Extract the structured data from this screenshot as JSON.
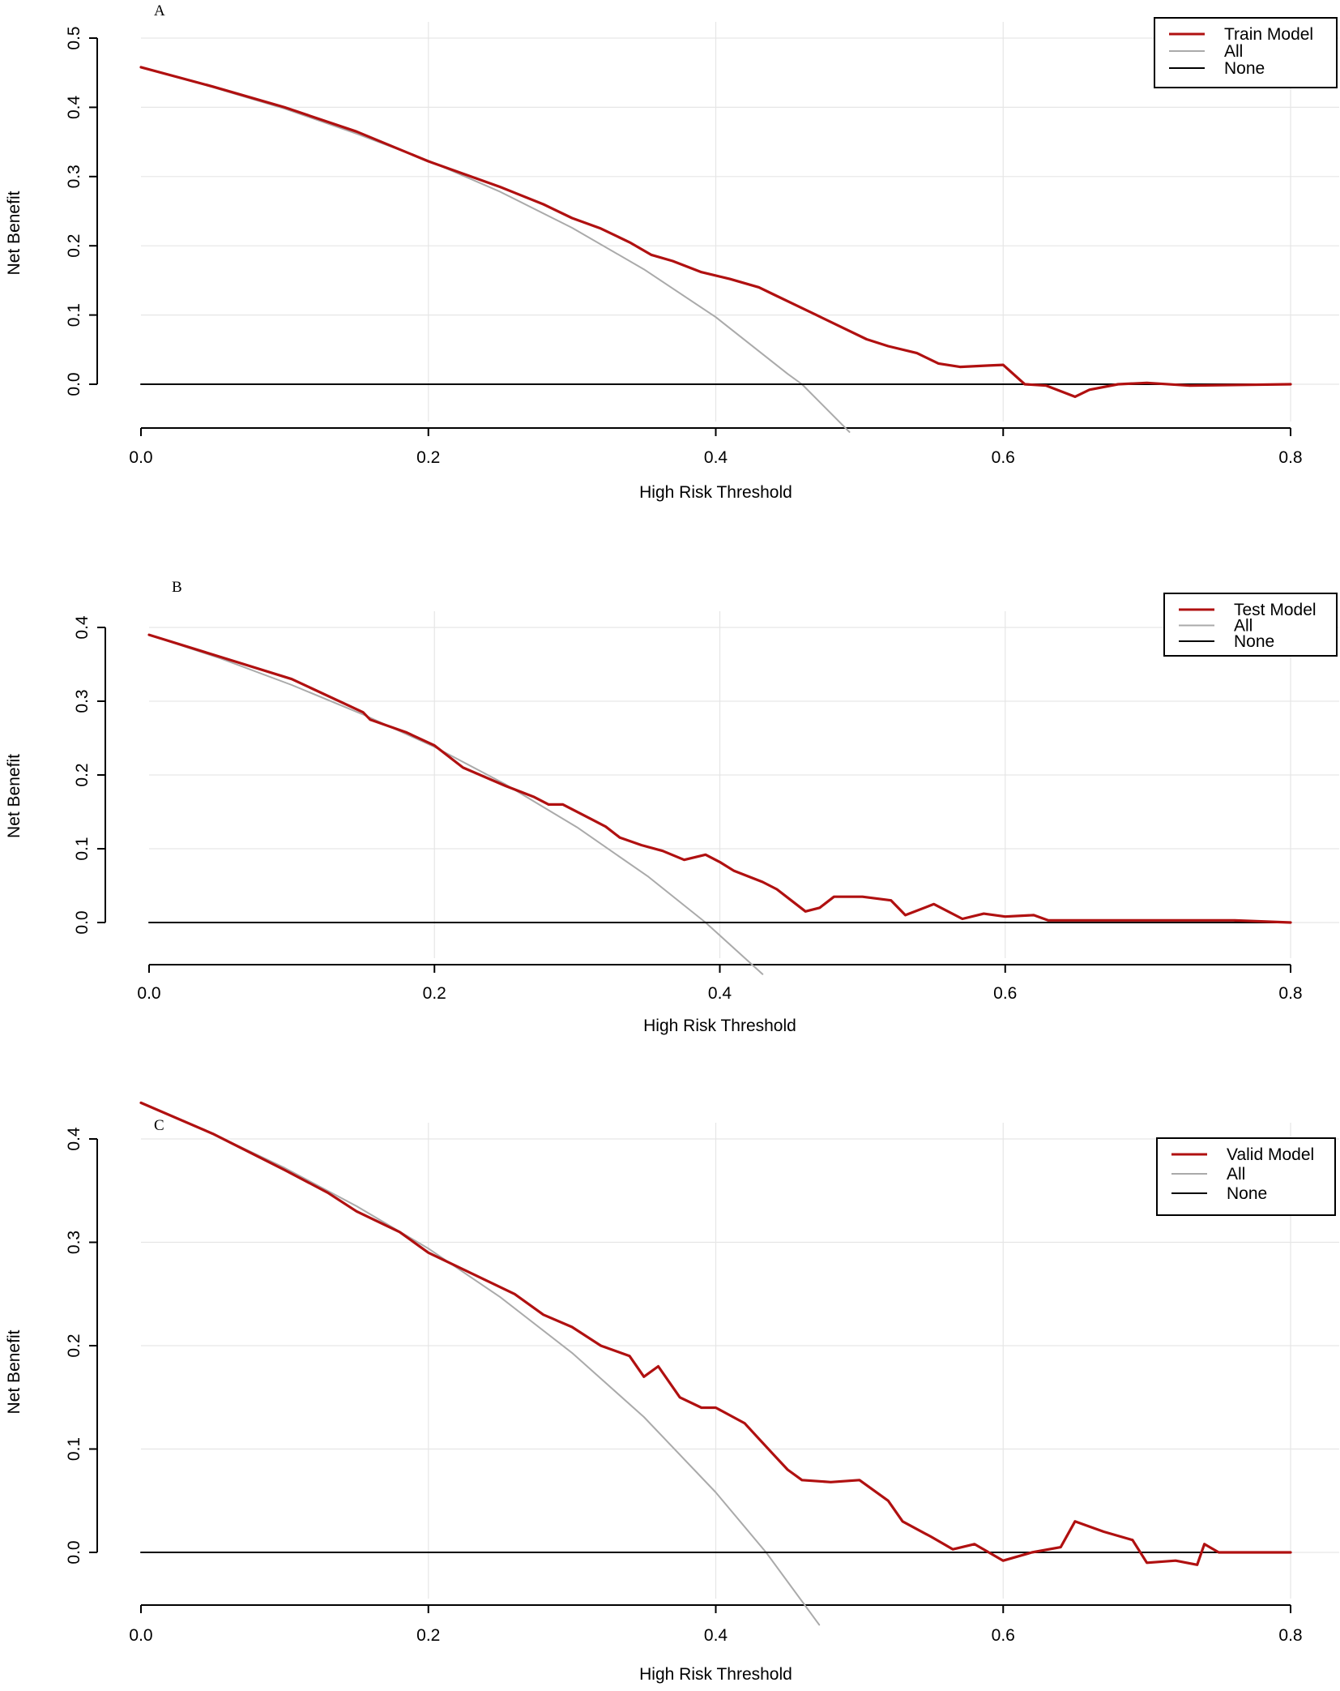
{
  "chart_data": [
    {
      "type": "line",
      "panel_label": "A",
      "xlabel": "High Risk Threshold",
      "ylabel": "Net Benefit",
      "xlim": [
        0,
        0.8
      ],
      "ylim": [
        -0.07,
        0.5
      ],
      "x_ticks": [
        0,
        0.2,
        0.4,
        0.6,
        0.8
      ],
      "x_tick_labels": [
        "0.0",
        "0.2",
        "0.4",
        "0.6",
        "0.8"
      ],
      "y_ticks": [
        0,
        0.1,
        0.2,
        0.3,
        0.4,
        0.5
      ],
      "y_tick_labels": [
        "0.0",
        "0.1",
        "0.2",
        "0.3",
        "0.4",
        "0.5"
      ],
      "grid": true,
      "legend_position": "top-right",
      "series": [
        {
          "name": "Train Model",
          "color": "#b01010",
          "x": [
            0.0,
            0.05,
            0.1,
            0.15,
            0.2,
            0.25,
            0.28,
            0.3,
            0.32,
            0.34,
            0.355,
            0.37,
            0.39,
            0.41,
            0.43,
            0.44,
            0.455,
            0.47,
            0.49,
            0.505,
            0.52,
            0.54,
            0.555,
            0.57,
            0.59,
            0.6,
            0.615,
            0.63,
            0.65,
            0.66,
            0.68,
            0.7,
            0.73,
            0.8
          ],
          "y": [
            0.458,
            0.43,
            0.4,
            0.365,
            0.322,
            0.285,
            0.26,
            0.24,
            0.225,
            0.205,
            0.187,
            0.178,
            0.162,
            0.152,
            0.14,
            0.13,
            0.115,
            0.1,
            0.08,
            0.065,
            0.055,
            0.045,
            0.03,
            0.025,
            0.027,
            0.028,
            0.0,
            -0.002,
            -0.018,
            -0.008,
            0.0,
            0.002,
            -0.002,
            0.0
          ]
        },
        {
          "name": "All",
          "color": "#aaaaaa",
          "prevalence": 0.458,
          "x": [
            0.0,
            0.05,
            0.1,
            0.15,
            0.2,
            0.25,
            0.3,
            0.35,
            0.4,
            0.45,
            0.46,
            0.493
          ],
          "y": [
            0.458,
            0.429,
            0.398,
            0.362,
            0.323,
            0.278,
            0.226,
            0.166,
            0.097,
            0.015,
            0.0,
            -0.069
          ]
        },
        {
          "name": "None",
          "color": "#000000",
          "x": [
            0.0,
            0.8
          ],
          "y": [
            0.0,
            0.0
          ]
        }
      ]
    },
    {
      "type": "line",
      "panel_label": "B",
      "xlabel": "High Risk Threshold",
      "ylabel": "Net Benefit",
      "xlim": [
        0,
        0.8
      ],
      "ylim": [
        -0.07,
        0.4
      ],
      "x_ticks": [
        0,
        0.2,
        0.4,
        0.6,
        0.8
      ],
      "x_tick_labels": [
        "0.0",
        "0.2",
        "0.4",
        "0.6",
        "0.8"
      ],
      "y_ticks": [
        0,
        0.1,
        0.2,
        0.3,
        0.4
      ],
      "y_tick_labels": [
        "0.0",
        "0.1",
        "0.2",
        "0.3",
        "0.4"
      ],
      "grid": true,
      "legend_position": "top-right",
      "series": [
        {
          "name": "Test Model",
          "color": "#b01010",
          "x": [
            0.0,
            0.05,
            0.1,
            0.15,
            0.155,
            0.18,
            0.2,
            0.22,
            0.25,
            0.27,
            0.28,
            0.29,
            0.31,
            0.32,
            0.33,
            0.345,
            0.36,
            0.375,
            0.39,
            0.4,
            0.41,
            0.43,
            0.44,
            0.45,
            0.46,
            0.47,
            0.48,
            0.5,
            0.52,
            0.53,
            0.55,
            0.57,
            0.585,
            0.6,
            0.62,
            0.63,
            0.7,
            0.76,
            0.8
          ],
          "y": [
            0.39,
            0.36,
            0.33,
            0.285,
            0.275,
            0.258,
            0.24,
            0.21,
            0.185,
            0.17,
            0.16,
            0.16,
            0.14,
            0.13,
            0.115,
            0.105,
            0.097,
            0.085,
            0.092,
            0.082,
            0.07,
            0.055,
            0.045,
            0.03,
            0.015,
            0.02,
            0.035,
            0.035,
            0.03,
            0.01,
            0.025,
            0.005,
            0.012,
            0.008,
            0.01,
            0.003,
            0.003,
            0.003,
            0.0
          ]
        },
        {
          "name": "All",
          "color": "#aaaaaa",
          "prevalence": 0.39,
          "x": [
            0.0,
            0.05,
            0.1,
            0.15,
            0.2,
            0.25,
            0.3,
            0.35,
            0.39,
            0.43
          ],
          "y": [
            0.39,
            0.358,
            0.322,
            0.282,
            0.238,
            0.187,
            0.129,
            0.062,
            0.0,
            -0.07
          ]
        },
        {
          "name": "None",
          "color": "#000000",
          "x": [
            0.0,
            0.8
          ],
          "y": [
            0.0,
            0.0
          ]
        }
      ]
    },
    {
      "type": "line",
      "panel_label": "C",
      "xlabel": "High Risk Threshold",
      "ylabel": "Net Benefit",
      "xlim": [
        0,
        0.8
      ],
      "ylim": [
        -0.07,
        0.44
      ],
      "x_ticks": [
        0,
        0.2,
        0.4,
        0.6,
        0.8
      ],
      "x_tick_labels": [
        "0.0",
        "0.2",
        "0.4",
        "0.6",
        "0.8"
      ],
      "y_ticks": [
        0,
        0.1,
        0.2,
        0.3,
        0.4
      ],
      "y_tick_labels": [
        "0.0",
        "0.1",
        "0.2",
        "0.3",
        "0.4"
      ],
      "grid": true,
      "legend_position": "top-right",
      "series": [
        {
          "name": "Valid Model",
          "color": "#b01010",
          "x": [
            0.0,
            0.05,
            0.1,
            0.13,
            0.15,
            0.18,
            0.2,
            0.23,
            0.26,
            0.28,
            0.3,
            0.32,
            0.34,
            0.35,
            0.36,
            0.375,
            0.39,
            0.4,
            0.42,
            0.43,
            0.44,
            0.45,
            0.46,
            0.48,
            0.5,
            0.52,
            0.53,
            0.55,
            0.565,
            0.58,
            0.6,
            0.62,
            0.64,
            0.65,
            0.67,
            0.69,
            0.7,
            0.72,
            0.735,
            0.74,
            0.75,
            0.8
          ],
          "y": [
            0.435,
            0.405,
            0.37,
            0.348,
            0.33,
            0.31,
            0.29,
            0.27,
            0.25,
            0.23,
            0.218,
            0.2,
            0.19,
            0.17,
            0.18,
            0.15,
            0.14,
            0.14,
            0.125,
            0.11,
            0.095,
            0.08,
            0.07,
            0.068,
            0.07,
            0.05,
            0.03,
            0.015,
            0.003,
            0.008,
            -0.008,
            0.0,
            0.005,
            0.03,
            0.02,
            0.012,
            -0.01,
            -0.008,
            -0.012,
            0.008,
            0.0,
            0.0
          ]
        },
        {
          "name": "All",
          "color": "#aaaaaa",
          "prevalence": 0.435,
          "x": [
            0.0,
            0.05,
            0.1,
            0.15,
            0.2,
            0.25,
            0.3,
            0.35,
            0.4,
            0.435,
            0.472
          ],
          "y": [
            0.435,
            0.405,
            0.372,
            0.335,
            0.294,
            0.247,
            0.193,
            0.131,
            0.058,
            0.0,
            -0.07
          ]
        },
        {
          "name": "None",
          "color": "#000000",
          "x": [
            0.0,
            0.8
          ],
          "y": [
            0.0,
            0.0
          ]
        }
      ]
    }
  ]
}
